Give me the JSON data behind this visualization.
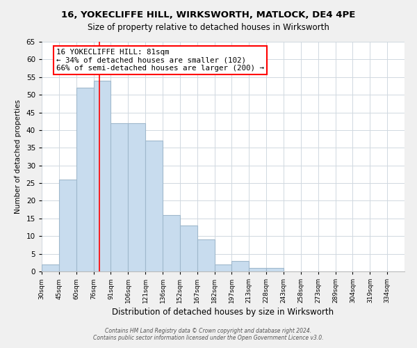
{
  "title": "16, YOKECLIFFE HILL, WIRKSWORTH, MATLOCK, DE4 4PE",
  "subtitle": "Size of property relative to detached houses in Wirksworth",
  "xlabel": "Distribution of detached houses by size in Wirksworth",
  "ylabel": "Number of detached properties",
  "bar_color": "#c8dcee",
  "bar_edge_color": "#a0b8cc",
  "categories": [
    "30sqm",
    "45sqm",
    "60sqm",
    "76sqm",
    "91sqm",
    "106sqm",
    "121sqm",
    "136sqm",
    "152sqm",
    "167sqm",
    "182sqm",
    "197sqm",
    "213sqm",
    "228sqm",
    "243sqm",
    "258sqm",
    "273sqm",
    "289sqm",
    "304sqm",
    "319sqm",
    "334sqm"
  ],
  "values": [
    2,
    26,
    52,
    54,
    42,
    42,
    37,
    16,
    13,
    9,
    2,
    3,
    1,
    1,
    0,
    0,
    0,
    0,
    0,
    0,
    0
  ],
  "ylim": [
    0,
    65
  ],
  "yticks": [
    0,
    5,
    10,
    15,
    20,
    25,
    30,
    35,
    40,
    45,
    50,
    55,
    60,
    65
  ],
  "property_line_label": "16 YOKECLIFFE HILL: 81sqm",
  "annotation_line1": "← 34% of detached houses are smaller (102)",
  "annotation_line2": "66% of semi-detached houses are larger (200) →",
  "footer1": "Contains HM Land Registry data © Crown copyright and database right 2024.",
  "footer2": "Contains public sector information licensed under the Open Government Licence v3.0.",
  "background_color": "#f0f0f0",
  "plot_background_color": "#ffffff",
  "grid_color": "#d0d8e0",
  "bin_width": 15
}
